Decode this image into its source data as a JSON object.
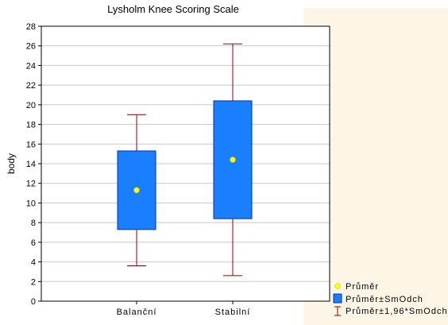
{
  "chart_data": {
    "type": "boxplot",
    "title": "Lysholm Knee Scoring Scale",
    "xlabel": "",
    "ylabel": "body",
    "ylim": [
      0,
      28
    ],
    "yticks": [
      0,
      2,
      4,
      6,
      8,
      10,
      12,
      14,
      16,
      18,
      20,
      22,
      24,
      26,
      28
    ],
    "grid": true,
    "legend_position": "bottom-right",
    "categories": [
      "Balanční",
      "Stabilní"
    ],
    "mean": [
      11.3,
      14.4
    ],
    "mean_plus_minus_sd": [
      [
        7.3,
        15.3
      ],
      [
        8.4,
        20.4
      ]
    ],
    "mean_plus_minus_1_96_sd": [
      [
        3.6,
        19.0
      ],
      [
        2.6,
        26.2
      ]
    ],
    "legend": [
      "Průměr",
      "Průměr±SmOdch",
      "Průměr±1,96*SmOdch"
    ],
    "colors": {
      "box_fill": "#1a7fff",
      "box_stroke": "#0033aa",
      "mean_marker": "#ffff00",
      "whisker": "#8b0000",
      "grid": "#c8c8c8",
      "outer_background": "#fdf6e6"
    }
  }
}
